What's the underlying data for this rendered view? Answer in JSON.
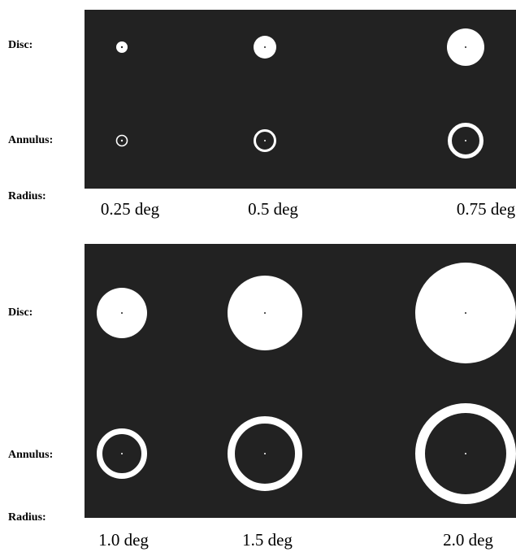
{
  "panels": [
    {
      "disc_label": "Disc:",
      "annulus_label": "Annulus:",
      "radius_label": "Radius:",
      "radii": [
        "0.25 deg",
        "0.5 deg",
        "0.75 deg"
      ]
    },
    {
      "disc_label": "Disc:",
      "annulus_label": "Annulus:",
      "radius_label": "Radius:",
      "radii": [
        "1.0 deg",
        "1.5 deg",
        "2.0 deg"
      ]
    }
  ]
}
